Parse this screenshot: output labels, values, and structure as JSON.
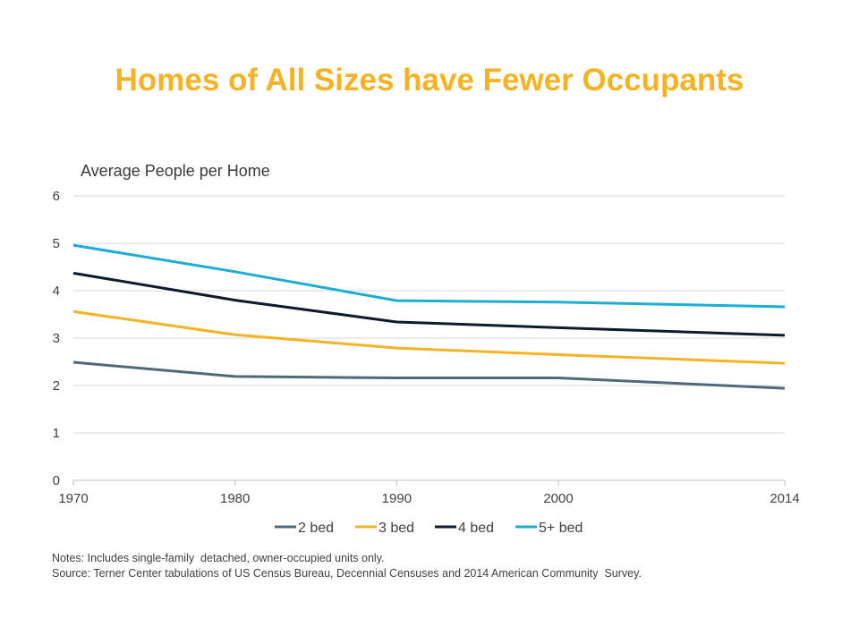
{
  "title": "Homes of All Sizes have Fewer Occupants",
  "notes": "Notes: Includes single-family  detached, owner-occupied units only.",
  "source": "Source: Terner Center tabulations of US Census Bureau, Decennial Censuses and 2014 American Community  Survey.",
  "colors": {
    "title": "#F5B324",
    "2 bed": "#4D6A7C",
    "3 bed": "#F5B324",
    "4 bed": "#0D1B2E",
    "5+ bed": "#1AADD6",
    "grid": "#D9D9D9",
    "axis_text": "#404040"
  },
  "chart_data": {
    "type": "line",
    "title": "Homes of All Sizes have Fewer Occupants",
    "ylabel": "Average People per Home",
    "xlabel": "",
    "x": [
      1970,
      1980,
      1990,
      2000,
      2014
    ],
    "x_tick_labels": [
      "1970",
      "1980",
      "1990",
      "2000",
      "2014"
    ],
    "y_ticks": [
      "0",
      "1",
      "2",
      "3",
      "4",
      "5",
      "6"
    ],
    "ylim": [
      0,
      6
    ],
    "grid": true,
    "legend": "bottom",
    "series": [
      {
        "name": "2 bed",
        "values": [
          2.49,
          2.19,
          2.16,
          2.16,
          1.94
        ]
      },
      {
        "name": "3 bed",
        "values": [
          3.56,
          3.07,
          2.79,
          2.65,
          2.47
        ]
      },
      {
        "name": "4 bed",
        "values": [
          4.37,
          3.8,
          3.34,
          3.22,
          3.06
        ]
      },
      {
        "name": "5+ bed",
        "values": [
          4.96,
          4.4,
          3.79,
          3.76,
          3.66
        ]
      }
    ]
  }
}
